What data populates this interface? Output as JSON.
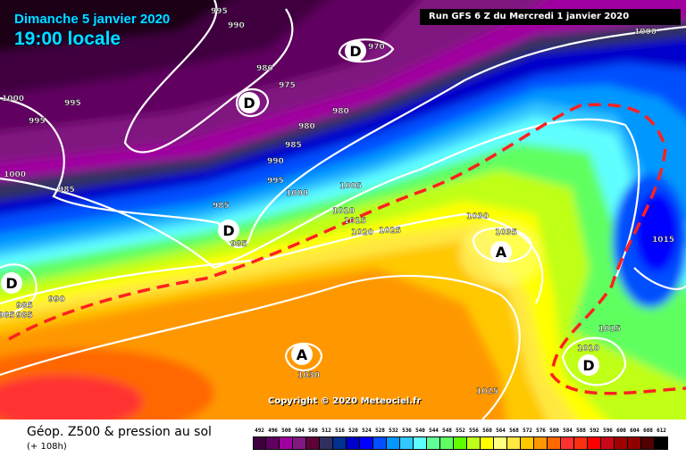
{
  "header": {
    "date": "Dimanche 5 janvier 2020",
    "time": "19:00 locale",
    "run": "Run GFS 6 Z du Mercredi 1 janvier 2020"
  },
  "copyright": "Copyright © 2020 Meteociel.fr",
  "footer": {
    "title": "Géop. Z500 & pression au sol",
    "subtitle": "(+ 108h)"
  },
  "legend": [
    {
      "label": "492",
      "color": "#400040"
    },
    {
      "label": "496",
      "color": "#600060"
    },
    {
      "label": "500",
      "color": "#a000a0"
    },
    {
      "label": "504",
      "color": "#801880"
    },
    {
      "label": "508",
      "color": "#600038"
    },
    {
      "label": "512",
      "color": "#303060"
    },
    {
      "label": "516",
      "color": "#003090"
    },
    {
      "label": "520",
      "color": "#0000cc"
    },
    {
      "label": "524",
      "color": "#0000ff"
    },
    {
      "label": "528",
      "color": "#0050ff"
    },
    {
      "label": "532",
      "color": "#0098ff"
    },
    {
      "label": "536",
      "color": "#30c8ff"
    },
    {
      "label": "540",
      "color": "#60ffff"
    },
    {
      "label": "544",
      "color": "#60ff98"
    },
    {
      "label": "548",
      "color": "#60ff60"
    },
    {
      "label": "552",
      "color": "#60ff00"
    },
    {
      "label": "556",
      "color": "#c0ff18"
    },
    {
      "label": "560",
      "color": "#ffff00"
    },
    {
      "label": "564",
      "color": "#ffff80"
    },
    {
      "label": "568",
      "color": "#ffe840"
    },
    {
      "label": "572",
      "color": "#ffc800"
    },
    {
      "label": "576",
      "color": "#ff9800"
    },
    {
      "label": "580",
      "color": "#ff6800"
    },
    {
      "label": "584",
      "color": "#ff3030"
    },
    {
      "label": "588",
      "color": "#f83010"
    },
    {
      "label": "592",
      "color": "#ff0000"
    },
    {
      "label": "596",
      "color": "#c80818"
    },
    {
      "label": "600",
      "color": "#a00000"
    },
    {
      "label": "604",
      "color": "#900000"
    },
    {
      "label": "608",
      "color": "#500000"
    },
    {
      "label": "612",
      "color": "#000000"
    }
  ],
  "isobar_labels": [
    "995",
    "990",
    "1000",
    "995",
    "995",
    "980",
    "975",
    "970",
    "980",
    "980",
    "985",
    "990",
    "995",
    "1000",
    "1000",
    "985",
    "985",
    "985",
    "1005",
    "1010",
    "1015",
    "1020",
    "1025",
    "1030",
    "1035",
    "1000",
    "1015",
    "1015",
    "1010",
    "990",
    "985",
    "985",
    "985",
    "1030",
    "1025"
  ],
  "pressure_centers": [
    {
      "label": "D",
      "type": "low"
    },
    {
      "label": "D",
      "type": "low"
    },
    {
      "label": "D",
      "type": "low"
    },
    {
      "label": "D",
      "type": "low"
    },
    {
      "label": "A",
      "type": "high"
    },
    {
      "label": "A",
      "type": "high"
    },
    {
      "label": "D",
      "type": "low"
    }
  ],
  "jet_line_color": "#ff2020"
}
